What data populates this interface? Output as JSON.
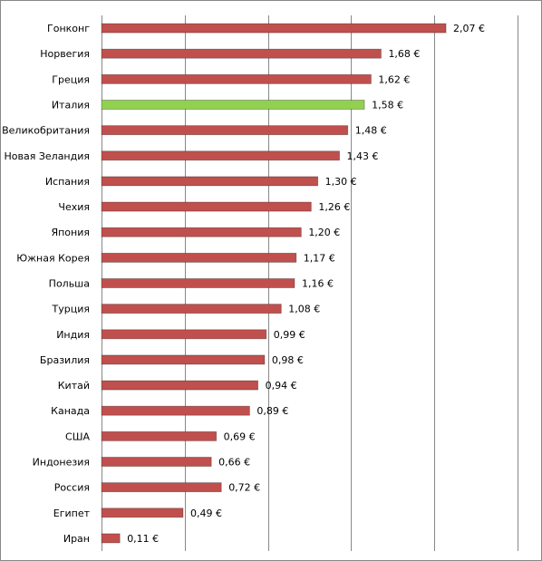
{
  "chart_data": {
    "type": "bar",
    "orientation": "horizontal",
    "categories": [
      "Гонконг",
      "Норвегия",
      "Греция",
      "Италия",
      "Великобритания",
      "Новая Зеландия",
      "Испания",
      "Чехия",
      "Япония",
      "Южная Корея",
      "Польша",
      "Турция",
      "Индия",
      "Бразилия",
      "Китай",
      "Канада",
      "США",
      "Индонезия",
      "Россия",
      "Египет",
      "Иран"
    ],
    "values": [
      2.07,
      1.68,
      1.62,
      1.58,
      1.48,
      1.43,
      1.3,
      1.26,
      1.2,
      1.17,
      1.16,
      1.08,
      0.99,
      0.98,
      0.94,
      0.89,
      0.69,
      0.66,
      0.72,
      0.49,
      0.11
    ],
    "value_labels": [
      "2,07 €",
      "1,68 €",
      "1,62 €",
      "1,58 €",
      "1,48 €",
      "1,43 €",
      "1,30 €",
      "1,26 €",
      "1,20 €",
      "1,17 €",
      "1,16 €",
      "1,08 €",
      "0,99 €",
      "0,98 €",
      "0,94 €",
      "0,89 €",
      "0,69 €",
      "0,66 €",
      "0,72 €",
      "0,49 €",
      "0,11 €"
    ],
    "colors": [
      "#c0504d",
      "#c0504d",
      "#c0504d",
      "#92d050",
      "#c0504d",
      "#c0504d",
      "#c0504d",
      "#c0504d",
      "#c0504d",
      "#c0504d",
      "#c0504d",
      "#c0504d",
      "#c0504d",
      "#c0504d",
      "#c0504d",
      "#c0504d",
      "#c0504d",
      "#c0504d",
      "#c0504d",
      "#c0504d",
      "#c0504d"
    ],
    "xlim": [
      0,
      2.5
    ],
    "xticks": [
      0,
      0.5,
      1,
      1.5,
      2,
      2.5
    ],
    "grid": true
  }
}
